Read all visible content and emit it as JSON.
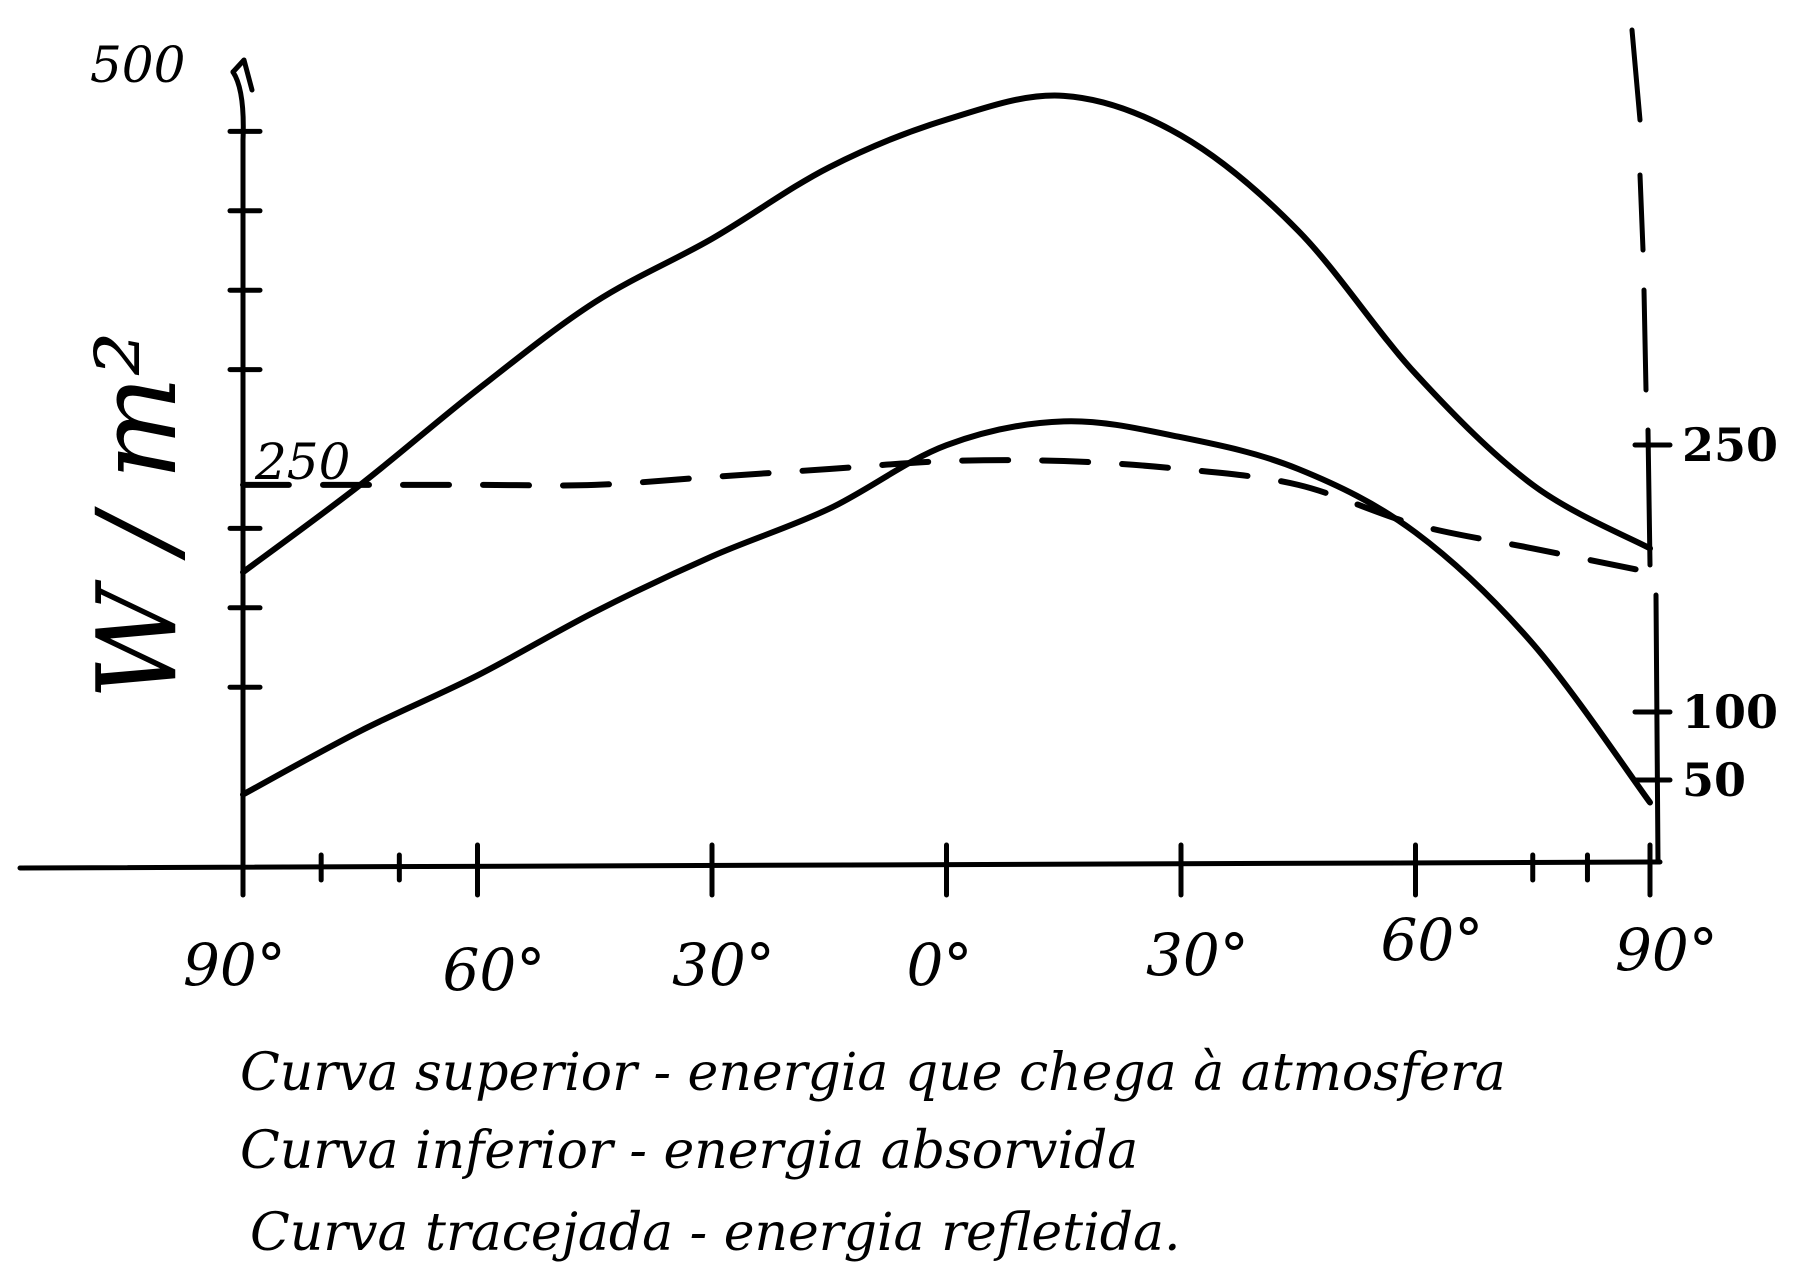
{
  "chart_data": {
    "type": "line",
    "ylabel": "W / m²",
    "x_ticks": [
      "90°",
      "60°",
      "30°",
      "0°",
      "30°",
      "60°",
      "90°"
    ],
    "x_tick_values": [
      -90,
      -60,
      -30,
      0,
      30,
      60,
      90
    ],
    "xlim": [
      -90,
      90
    ],
    "y_left_ticks": [
      {
        "value": 500,
        "label": "500"
      },
      {
        "value": 250,
        "label": "250"
      }
    ],
    "y_right_ticks": [
      {
        "value": 250,
        "label": "250"
      },
      {
        "value": 100,
        "label": "100"
      },
      {
        "value": 50,
        "label": "50"
      }
    ],
    "ylim": [
      0,
      510
    ],
    "grid": false,
    "series": [
      {
        "style": "solid",
        "x": [
          -90,
          -75,
          -60,
          -45,
          -30,
          -15,
          0,
          15,
          30,
          45,
          60,
          75,
          90
        ],
        "y": [
          185,
          240,
          300,
          355,
          395,
          440,
          470,
          485,
          460,
          400,
          310,
          240,
          200
        ]
      },
      {
        "style": "solid",
        "x": [
          -90,
          -75,
          -60,
          -45,
          -30,
          -15,
          0,
          15,
          30,
          45,
          60,
          75,
          90
        ],
        "y": [
          45,
          85,
          120,
          160,
          195,
          225,
          265,
          280,
          270,
          250,
          210,
          140,
          40
        ]
      },
      {
        "style": "dashed",
        "x": [
          -90,
          -75,
          -60,
          -45,
          -30,
          -15,
          0,
          15,
          30,
          45,
          60,
          75,
          90
        ],
        "y": [
          240,
          240,
          240,
          240,
          245,
          250,
          255,
          255,
          250,
          240,
          215,
          200,
          185
        ]
      }
    ]
  },
  "legend": [
    "Curva superior - energia que chega à atmosfera",
    "Curva inferior - energia absorvida",
    "Curva tracejada - energia refletida."
  ]
}
